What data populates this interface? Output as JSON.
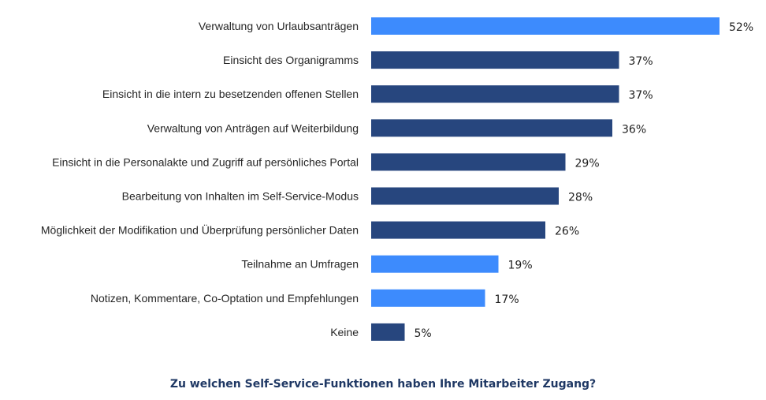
{
  "chart_data": {
    "type": "bar",
    "orientation": "horizontal",
    "title": "Zu welchen Self-Service-Funktionen haben Ihre Mitarbeiter Zugang?",
    "categories": [
      "Verwaltung von Urlaubsanträgen",
      "Einsicht des Organigramms",
      "Einsicht in die intern zu besetzenden offenen Stellen",
      "Verwaltung von Anträgen auf Weiterbildung",
      "Einsicht in die Personalakte und Zugriff auf persönliches Portal",
      "Bearbeitung von Inhalten im Self-Service-Modus",
      "Möglichkeit der Modifikation und Überprüfung persönlicher Daten",
      "Teilnahme an Umfragen",
      "Notizen, Kommentare, Co-Optation und Empfehlungen",
      "Keine"
    ],
    "values": [
      52,
      37,
      37,
      36,
      29,
      28,
      26,
      19,
      17,
      5
    ],
    "value_labels": [
      "52%",
      "37%",
      "37%",
      "36%",
      "29%",
      "28%",
      "26%",
      "19%",
      "17%",
      "5%"
    ],
    "bar_colors": [
      "#3d8bfd",
      "#27467e",
      "#27467e",
      "#27467e",
      "#27467e",
      "#27467e",
      "#27467e",
      "#3d8bfd",
      "#3d8bfd",
      "#27467e"
    ],
    "unit": "%",
    "xlim": [
      0,
      52
    ],
    "grid": false,
    "legend": "none"
  }
}
